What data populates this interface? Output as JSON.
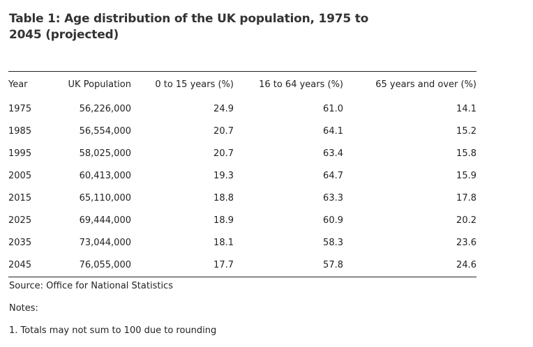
{
  "title": "Table 1: Age distribution of the UK population, 1975 to 2045 (projected)",
  "headers": [
    "Year",
    "UK Population",
    "0 to 15 years (%)",
    "16 to 64 years (%)",
    "65 years and over (%)"
  ],
  "rows": [
    [
      "1975",
      "56,226,000",
      "24.9",
      "61.0",
      "14.1"
    ],
    [
      "1985",
      "56,554,000",
      "20.7",
      "64.1",
      "15.2"
    ],
    [
      "1995",
      "58,025,000",
      "20.7",
      "63.4",
      "15.8"
    ],
    [
      "2005",
      "60,413,000",
      "19.3",
      "64.7",
      "15.9"
    ],
    [
      "2015",
      "65,110,000",
      "18.8",
      "63.3",
      "17.8"
    ],
    [
      "2025",
      "69,444,000",
      "18.9",
      "60.9",
      "20.2"
    ],
    [
      "2035",
      "73,044,000",
      "18.1",
      "58.3",
      "23.6"
    ],
    [
      "2045",
      "76,055,000",
      "17.7",
      "57.8",
      "24.6"
    ]
  ],
  "source": "Source: Office for National Statistics",
  "notes_heading": "Notes:",
  "notes": [
    "1. Totals may not sum to 100 due to rounding"
  ]
}
